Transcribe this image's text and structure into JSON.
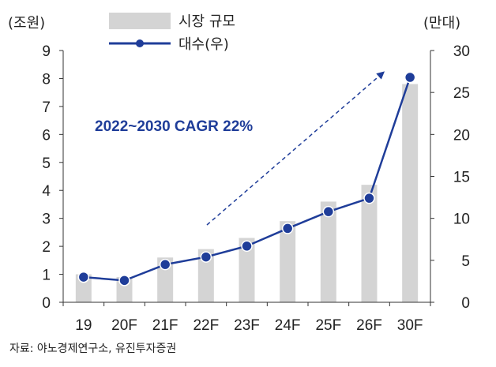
{
  "chart_data": {
    "type": "bar+line",
    "categories": [
      "19",
      "20F",
      "21F",
      "22F",
      "23F",
      "24F",
      "25F",
      "26F",
      "30F"
    ],
    "series": [
      {
        "name": "시장 규모",
        "type": "bar",
        "axis": "left",
        "values": [
          1.0,
          0.9,
          1.6,
          1.9,
          2.3,
          2.9,
          3.6,
          4.2,
          7.8
        ]
      },
      {
        "name": "대수(우)",
        "type": "line",
        "axis": "right",
        "values": [
          3,
          2.6,
          4.5,
          5.4,
          6.7,
          8.8,
          10.8,
          12.4,
          26.8
        ]
      }
    ],
    "left_axis": {
      "unit_label": "(조원)",
      "ylim": [
        0,
        9
      ],
      "ticks": [
        "0",
        "1",
        "2",
        "3",
        "4",
        "5",
        "6",
        "7",
        "8",
        "9"
      ]
    },
    "right_axis": {
      "unit_label": "(만대)",
      "ylim": [
        0,
        30
      ],
      "ticks": [
        "0",
        "5",
        "10",
        "15",
        "20",
        "25",
        "30"
      ]
    },
    "annotation": "2022~2030 CAGR 22%",
    "legend_position": "top-center",
    "colors": {
      "bar": "#d4d4d4",
      "line": "#1f3d99",
      "axis": "#333333"
    }
  },
  "source": "자료: 야노경제연구소, 유진투자증권"
}
